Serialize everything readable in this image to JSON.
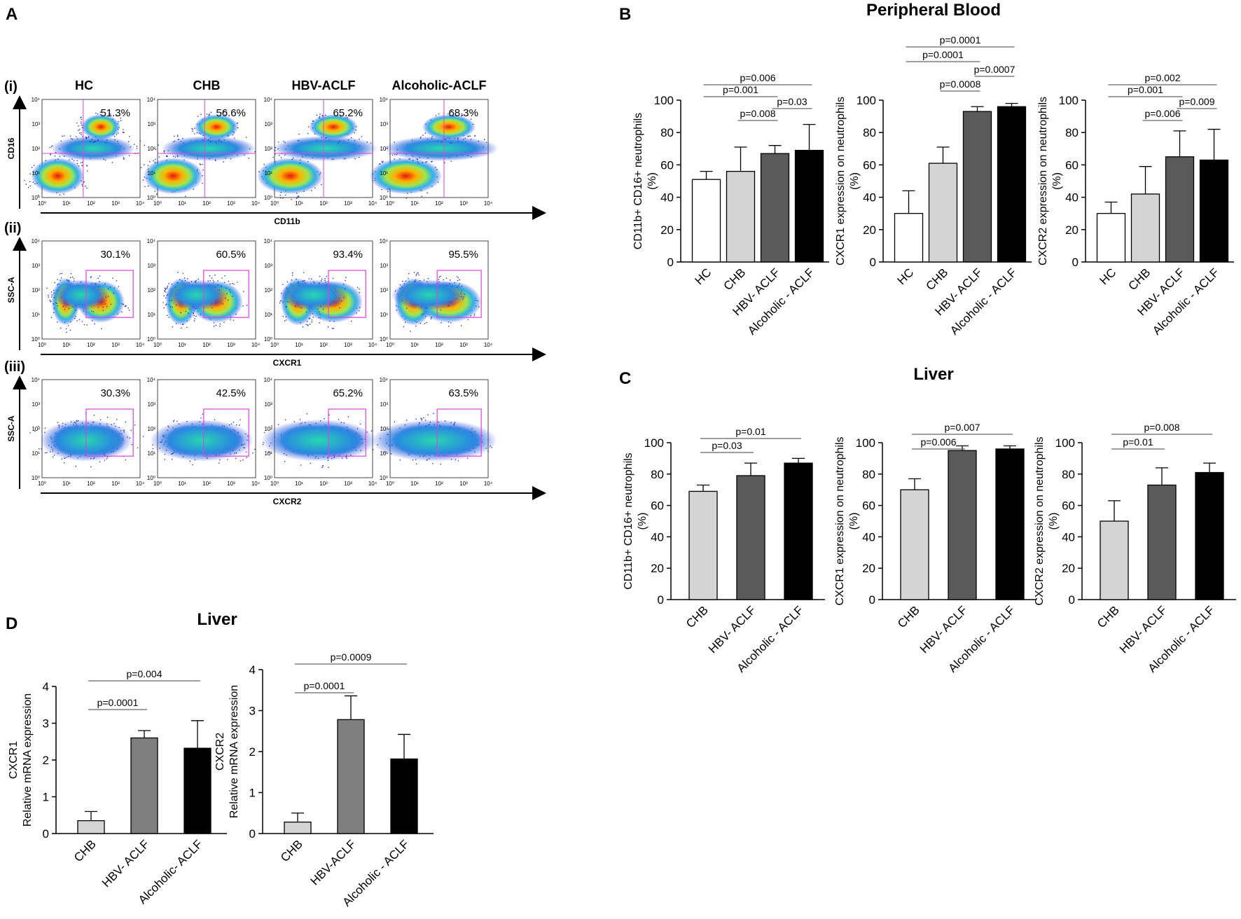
{
  "panel_labels": {
    "A": "A",
    "B": "B",
    "C": "C",
    "D": "D"
  },
  "section_titles": {
    "peripheral_blood": "Peripheral Blood",
    "liver_c": "Liver",
    "liver_d": "Liver"
  },
  "flow": {
    "row_labels": [
      "(i)",
      "(ii)",
      "(iii)"
    ],
    "group_headers": [
      "HC",
      "CHB",
      "HBV-ACLF",
      "Alcoholic-ACLF"
    ],
    "rows": [
      {
        "y_label": "CD16",
        "x_label": "CD11b",
        "gate": "quadrant",
        "percents": [
          "51.3%",
          "56.6%",
          "65.2%",
          "68.3%"
        ]
      },
      {
        "y_label": "SSC-A",
        "x_label": "CXCR1",
        "gate": "box",
        "percents": [
          "30.1%",
          "60.5%",
          "93.4%",
          "95.5%"
        ]
      },
      {
        "y_label": "SSC-A",
        "x_label": "CXCR2",
        "gate": "box",
        "percents": [
          "30.3%",
          "42.5%",
          "65.2%",
          "63.5%"
        ]
      }
    ],
    "tick_labels": [
      "10⁰",
      "10¹",
      "10²",
      "10³",
      "10⁴"
    ]
  },
  "colors": {
    "HC": "#ffffff",
    "CHB": "#d4d4d4",
    "HBV-ACLF": "#5a5a5a",
    "Alcoholic-ACLF": "#000000",
    "HBV-ACLF_D": "#7f7f7f",
    "gate": "#e040e0"
  },
  "chart_data": [
    {
      "id": "B1",
      "type": "bar",
      "section": "Peripheral Blood",
      "categories": [
        "HC",
        "CHB",
        "HBV- ACLF",
        "Alcoholic - ACLF"
      ],
      "values": [
        51,
        56,
        67,
        69
      ],
      "errors": [
        5,
        15,
        5,
        16
      ],
      "ylabel": [
        "CD11b+ CD16+ neutrophils",
        "(%)"
      ],
      "ylim": [
        0,
        100
      ],
      "yticks": [
        0,
        20,
        40,
        60,
        80,
        100
      ],
      "pvalues": [
        {
          "a": 0,
          "b": 3,
          "text": "p=0.006"
        },
        {
          "a": 0,
          "b": 2,
          "text": "p=0.001"
        },
        {
          "a": 2,
          "b": 3,
          "text": "p=0.03"
        },
        {
          "a": 1,
          "b": 2,
          "text": "p=0.008"
        }
      ]
    },
    {
      "id": "B2",
      "type": "bar",
      "section": "Peripheral Blood",
      "categories": [
        "HC",
        "CHB",
        "HBV- ACLF",
        "Alcoholic - ACLF"
      ],
      "values": [
        30,
        61,
        93,
        96
      ],
      "errors": [
        14,
        10,
        3,
        2
      ],
      "ylabel": [
        "CXCR1 expression on neutrophils",
        "(%)"
      ],
      "ylim": [
        0,
        100
      ],
      "yticks": [
        0,
        20,
        40,
        60,
        80,
        100
      ],
      "pvalues": [
        {
          "a": 0,
          "b": 3,
          "text": "p=0.0001"
        },
        {
          "a": 0,
          "b": 2,
          "text": "p=0.0001"
        },
        {
          "a": 2,
          "b": 3,
          "text": "p=0.0007"
        },
        {
          "a": 1,
          "b": 2,
          "text": "p=0.0008"
        }
      ]
    },
    {
      "id": "B3",
      "type": "bar",
      "section": "Peripheral Blood",
      "categories": [
        "HC",
        "CHB",
        "HBV- ACLF",
        "Alcoholic - ACLF"
      ],
      "values": [
        30,
        42,
        65,
        63
      ],
      "errors": [
        7,
        17,
        16,
        19
      ],
      "ylabel": [
        "CXCR2 expression on neutrophils",
        "(%)"
      ],
      "ylim": [
        0,
        100
      ],
      "yticks": [
        0,
        20,
        40,
        60,
        80,
        100
      ],
      "pvalues": [
        {
          "a": 0,
          "b": 3,
          "text": "p=0.002"
        },
        {
          "a": 0,
          "b": 2,
          "text": "p=0.001"
        },
        {
          "a": 2,
          "b": 3,
          "text": "p=0.009"
        },
        {
          "a": 1,
          "b": 2,
          "text": "p=0.006"
        }
      ]
    },
    {
      "id": "C1",
      "type": "bar",
      "section": "Liver",
      "categories": [
        "CHB",
        "HBV- ACLF",
        "Alcoholic - ACLF"
      ],
      "values": [
        69,
        79,
        87
      ],
      "errors": [
        4,
        8,
        3
      ],
      "ylabel": [
        "CD11b+ CD16+ neutrophils",
        "(%)"
      ],
      "ylim": [
        0,
        100
      ],
      "yticks": [
        0,
        20,
        40,
        60,
        80,
        100
      ],
      "pvalues": [
        {
          "a": 0,
          "b": 2,
          "text": "p=0.01"
        },
        {
          "a": 0,
          "b": 1,
          "text": "p=0.03"
        }
      ]
    },
    {
      "id": "C2",
      "type": "bar",
      "section": "Liver",
      "categories": [
        "CHB",
        "HBV- ACLF",
        "Alcoholic - ACLF"
      ],
      "values": [
        70,
        95,
        96
      ],
      "errors": [
        7,
        3,
        2
      ],
      "ylabel": [
        "CXCR1 expression on neutrophils",
        "(%)"
      ],
      "ylim": [
        0,
        100
      ],
      "yticks": [
        0,
        20,
        40,
        60,
        80,
        100
      ],
      "pvalues": [
        {
          "a": 0,
          "b": 2,
          "text": "p=0.007"
        },
        {
          "a": 0,
          "b": 1,
          "text": "p=0.006"
        }
      ]
    },
    {
      "id": "C3",
      "type": "bar",
      "section": "Liver",
      "categories": [
        "CHB",
        "HBV- ACLF",
        "Alcoholic - ACLF"
      ],
      "values": [
        50,
        73,
        81
      ],
      "errors": [
        13,
        11,
        6
      ],
      "ylabel": [
        "CXCR2 expression on neutrophils",
        "(%)"
      ],
      "ylim": [
        0,
        100
      ],
      "yticks": [
        0,
        20,
        40,
        60,
        80,
        100
      ],
      "pvalues": [
        {
          "a": 0,
          "b": 2,
          "text": "p=0.008"
        },
        {
          "a": 0,
          "b": 1,
          "text": "p=0.01"
        }
      ]
    },
    {
      "id": "D1",
      "type": "bar",
      "section": "Liver",
      "categories": [
        "CHB",
        "HBV- ACLF",
        "Alcoholic- ACLF"
      ],
      "values": [
        0.35,
        2.6,
        2.32
      ],
      "errors": [
        0.25,
        0.2,
        0.75
      ],
      "ylabel": [
        "CXCR1",
        "Relative mRNA expression"
      ],
      "ylim": [
        0,
        4
      ],
      "yticks": [
        0,
        1,
        2,
        3,
        4
      ],
      "pvalues": [
        {
          "a": 0,
          "b": 2,
          "text": "p=0.004"
        },
        {
          "a": 0,
          "b": 1,
          "text": "p=0.0001"
        }
      ]
    },
    {
      "id": "D2",
      "type": "bar",
      "section": "Liver",
      "categories": [
        "CHB",
        "HBV-ACLF",
        "Alcoholic - ACLF"
      ],
      "values": [
        0.28,
        2.78,
        1.82
      ],
      "errors": [
        0.22,
        0.58,
        0.6
      ],
      "ylabel": [
        "CXCR2",
        "Relative mRNA expression"
      ],
      "ylim": [
        0,
        4
      ],
      "yticks": [
        0,
        1,
        2,
        3,
        4
      ],
      "pvalues": [
        {
          "a": 0,
          "b": 2,
          "text": "p=0.0009"
        },
        {
          "a": 0,
          "b": 1,
          "text": "p=0.0001"
        }
      ]
    }
  ]
}
